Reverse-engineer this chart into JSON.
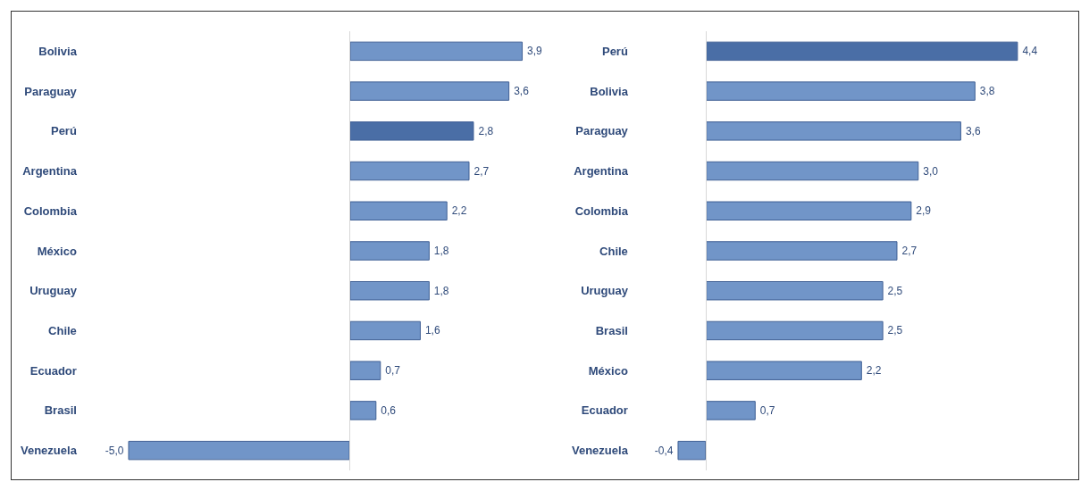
{
  "chart_data": [
    {
      "type": "bar",
      "orientation": "horizontal",
      "categories": [
        "Bolivia",
        "Paraguay",
        "Perú",
        "Argentina",
        "Colombia",
        "México",
        "Uruguay",
        "Chile",
        "Ecuador",
        "Brasil",
        "Venezuela"
      ],
      "values": [
        3.9,
        3.6,
        2.8,
        2.7,
        2.2,
        1.8,
        1.8,
        1.6,
        0.7,
        0.6,
        -5.0
      ],
      "colors": [
        "#7195c8",
        "#7195c8",
        "#4a6ea6",
        "#7195c8",
        "#7195c8",
        "#7195c8",
        "#7195c8",
        "#7195c8",
        "#7195c8",
        "#7195c8",
        "#7195c8"
      ],
      "value_labels": [
        "3,9",
        "3,6",
        "2,8",
        "2,7",
        "2,2",
        "1,8",
        "1,8",
        "1,6",
        "0,7",
        "0,6",
        "-5,0"
      ],
      "tick_labels": "y"
    },
    {
      "type": "bar",
      "orientation": "horizontal",
      "categories": [
        "Perú",
        "Bolivia",
        "Paraguay",
        "Argentina",
        "Colombia",
        "Chile",
        "Uruguay",
        "Brasil",
        "México",
        "Ecuador",
        "Venezuela"
      ],
      "values": [
        4.4,
        3.8,
        3.6,
        3.0,
        2.9,
        2.7,
        2.5,
        2.5,
        2.2,
        0.7,
        -0.4
      ],
      "colors": [
        "#4a6ea6",
        "#7195c8",
        "#7195c8",
        "#7195c8",
        "#7195c8",
        "#7195c8",
        "#7195c8",
        "#7195c8",
        "#7195c8",
        "#7195c8",
        "#7195c8"
      ],
      "value_labels": [
        "4,4",
        "3,8",
        "3,6",
        "3,0",
        "2,9",
        "2,7",
        "2,5",
        "2,5",
        "2,2",
        "0,7",
        "-0,4"
      ],
      "tick_labels": "y"
    }
  ]
}
